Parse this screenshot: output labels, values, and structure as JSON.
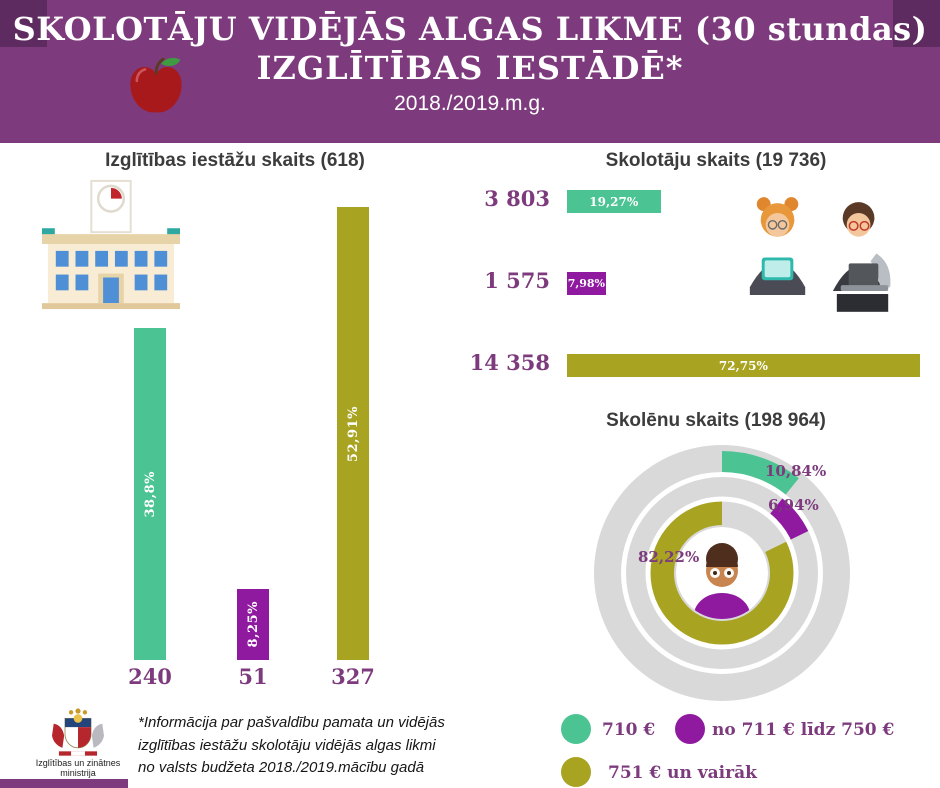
{
  "colors": {
    "header_purple": "#7d3b7d",
    "corner_purple": "#5e2b61",
    "green": "#4cc392",
    "violet": "#8f1aa0",
    "olive": "#a8a320",
    "number_text": "#7d3b7d",
    "donut_track": "#d9d9d9"
  },
  "header": {
    "title_line1": "SKOLOTĀJU VIDĒJĀS ALGAS LIKME (30 stundas)",
    "title_line2": "IZGLĪTĪBAS IESTĀDĒ*",
    "subtitle": "2018./2019.m.g."
  },
  "institutions": {
    "title": "Izglītības iestāžu skaits (618)",
    "total": 618,
    "bars": [
      {
        "label": "38,8%",
        "value": "240",
        "pct": 38.8,
        "color": "#4cc392"
      },
      {
        "label": "8,25%",
        "value": "51",
        "pct": 8.25,
        "color": "#8f1aa0"
      },
      {
        "label": "52,91%",
        "value": "327",
        "pct": 52.91,
        "color": "#a8a320"
      }
    ]
  },
  "teachers": {
    "title": "Skolotāju skaits (19 736)",
    "total": 19736,
    "rows": [
      {
        "value": "3 803",
        "label": "19,27%",
        "pct": 19.27,
        "color": "#4cc392"
      },
      {
        "value": "1 575",
        "label": "7,98%",
        "pct": 7.98,
        "color": "#8f1aa0"
      },
      {
        "value": "14 358",
        "label": "72,75%",
        "pct": 72.75,
        "color": "#a8a320"
      }
    ]
  },
  "students": {
    "title": "Skolēnu skaits (198 964)",
    "total": 198964,
    "segments": [
      {
        "label": "10,84%",
        "pct": 10.84,
        "color": "#4cc392"
      },
      {
        "label": "6,94%",
        "pct": 6.94,
        "color": "#8f1aa0"
      },
      {
        "label": "82,22%",
        "pct": 82.22,
        "color": "#a8a320"
      }
    ]
  },
  "legend": {
    "items": [
      {
        "label": "710 €",
        "color": "#4cc392"
      },
      {
        "label": "no 711 € līdz 750 €",
        "color": "#8f1aa0"
      },
      {
        "label": "751 € un vairāk",
        "color": "#a8a320"
      }
    ]
  },
  "footer": {
    "ministry": "Izglītības un zinātnes ministrija",
    "note_line1": "*Informācija par  pašvaldību pamata un vidējās",
    "note_line2": "izglītības iestāžu skolotāju vidējās algas likmi",
    "note_line3": "no valsts budžeta 2018./2019.mācību gadā"
  },
  "chart_data": [
    {
      "type": "bar",
      "title": "Izglītības iestāžu skaits (618)",
      "categories": [
        "710 €",
        "no 711 € līdz 750 €",
        "751 € un vairāk"
      ],
      "values": [
        240,
        51,
        327
      ],
      "percent_labels": [
        "38,8%",
        "8,25%",
        "52,91%"
      ],
      "total": 618,
      "orientation": "vertical",
      "colors": [
        "#4cc392",
        "#8f1aa0",
        "#a8a320"
      ]
    },
    {
      "type": "bar",
      "title": "Skolotāju skaits (19 736)",
      "categories": [
        "710 €",
        "no 711 € līdz 750 €",
        "751 € un vairāk"
      ],
      "values": [
        3803,
        1575,
        14358
      ],
      "percent_labels": [
        "19,27%",
        "7,98%",
        "72,75%"
      ],
      "total": 19736,
      "orientation": "horizontal",
      "colors": [
        "#4cc392",
        "#8f1aa0",
        "#a8a320"
      ]
    },
    {
      "type": "pie",
      "title": "Skolēnu skaits (198 964)",
      "categories": [
        "710 €",
        "no 711 € līdz 750 €",
        "751 € un vairāk"
      ],
      "values": [
        10.84,
        6.94,
        82.22
      ],
      "value_unit": "percent",
      "total": 198964,
      "colors": [
        "#4cc392",
        "#8f1aa0",
        "#a8a320"
      ]
    }
  ]
}
